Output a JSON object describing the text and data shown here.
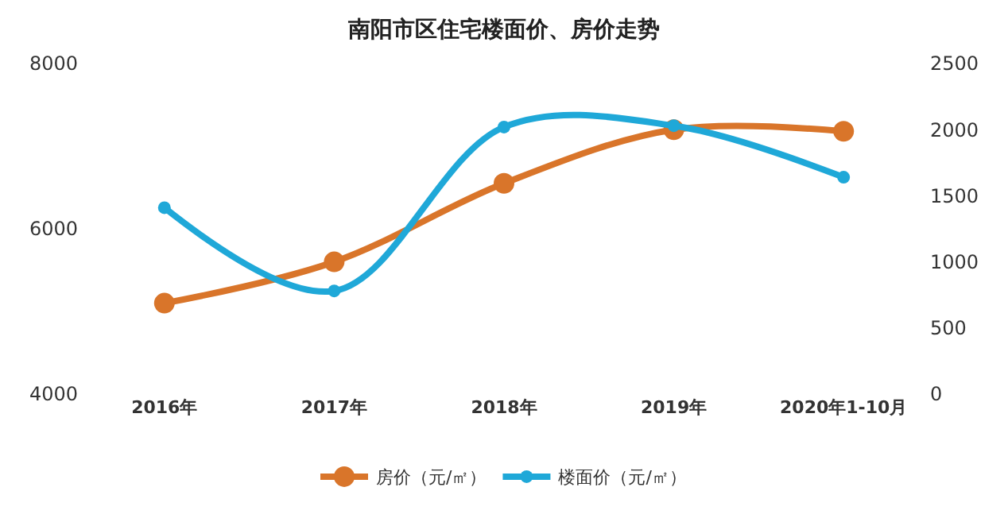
{
  "chart_data": {
    "type": "line",
    "title": "南阳市区住宅楼面价、房价走势",
    "categories": [
      "2016年",
      "2017年",
      "2018年",
      "2019年",
      "2020年1-10月"
    ],
    "series": [
      {
        "name": "房价（元/㎡）",
        "color": "#d9752a",
        "values": [
          5100,
          5600,
          6550,
          7200,
          7180
        ]
      },
      {
        "name": "楼面价（元/㎡）",
        "color": "#1fa8d8",
        "values": [
          1410,
          780,
          2020,
          2030,
          1640
        ],
        "axis": "y2"
      }
    ],
    "ylim": [
      4000,
      8000
    ],
    "yticks": [
      4000,
      6000,
      8000
    ],
    "y2lim": [
      0,
      2500
    ],
    "y2ticks": [
      0,
      500,
      1000,
      1500,
      2000,
      2500
    ],
    "grid": false,
    "legend": "bottom",
    "marker": "circle",
    "line_style": "solid"
  }
}
